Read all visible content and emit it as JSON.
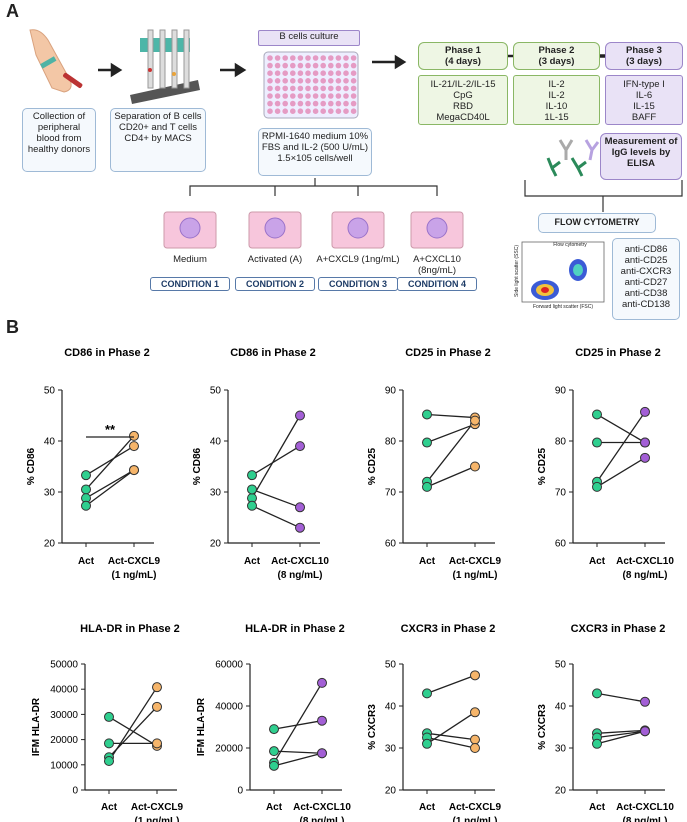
{
  "panel_a": {
    "label": "A",
    "steps": [
      "Collection of peripheral blood from healthy donors",
      "Separation of B cells CD20+ and T cells CD4+ by MACS"
    ],
    "culture": {
      "title": "B cells culture",
      "medium": "RPMI-1640 medium 10% FBS and IL-2 (500 U/mL) 1.5×105 cells/well"
    },
    "phases": [
      {
        "title": "Phase 1",
        "duration": "(4 days)",
        "items": [
          "IL-21/IL-2/IL-15",
          "CpG",
          "RBD",
          "MegaCD40L"
        ]
      },
      {
        "title": "Phase 2",
        "duration": "(3 days)",
        "items": [
          "IL-2",
          "IL-2",
          "IL-10",
          "1L-15"
        ]
      },
      {
        "title": "Phase 3",
        "duration": "(3 days)",
        "items": [
          "IFN-type I",
          "IL-6",
          "IL-15",
          "BAFF"
        ]
      }
    ],
    "measurement": "Measurement of IgG levels by ELISA",
    "conditions": [
      {
        "treatment": "Medium",
        "label": "CONDITION 1"
      },
      {
        "treatment": "Activated (A)",
        "label": "CONDITION 2"
      },
      {
        "treatment": "A+CXCL9 (1ng/mL)",
        "label": "CONDITION 3"
      },
      {
        "treatment": "A+CXCL10 (8ng/mL)",
        "label": "CONDITION 4"
      }
    ],
    "flow": {
      "title": "FLOW CYTOMETRY",
      "plot_title": "Flow cytometry",
      "x_label": "Forward light scatter (FSC)",
      "y_label": "Side light scatter (SSC)",
      "markers": [
        "anti-CD86",
        "anti-CD25",
        "anti-CXCR3",
        "anti-CD27",
        "anti-CD38",
        "anti-CD138"
      ]
    }
  },
  "panel_b_label": "B",
  "chart_data": [
    {
      "type": "paired",
      "title": "CD86 in Phase 2",
      "y_label": "% CD86",
      "categories": [
        "Act",
        "Act-CXCL9"
      ],
      "category_note": "(1 ng/mL)",
      "ylim": [
        20,
        50
      ],
      "yticks": [
        20,
        30,
        40,
        50
      ],
      "point_colors": [
        "#2fcf8f",
        "#f6b56a"
      ],
      "annotation": "**",
      "series": [
        {
          "values": [
            33.3,
            39
          ]
        },
        {
          "values": [
            30.5,
            41
          ]
        },
        {
          "values": [
            28.8,
            34.3
          ]
        },
        {
          "values": [
            27.3,
            34.3
          ]
        }
      ]
    },
    {
      "type": "paired",
      "title": "CD86 in Phase 2",
      "y_label": "% CD86",
      "categories": [
        "Act",
        "Act-CXCL10"
      ],
      "category_note": "(8 ng/mL)",
      "ylim": [
        20,
        50
      ],
      "yticks": [
        20,
        30,
        40,
        50
      ],
      "point_colors": [
        "#2fcf8f",
        "#a35fd6"
      ],
      "series": [
        {
          "values": [
            28.8,
            45
          ]
        },
        {
          "values": [
            33.3,
            39
          ]
        },
        {
          "values": [
            30.5,
            27
          ]
        },
        {
          "values": [
            27.3,
            23
          ]
        }
      ]
    },
    {
      "type": "paired",
      "title": "CD25 in Phase 2",
      "y_label": "% CD25",
      "categories": [
        "Act",
        "Act-CXCL9"
      ],
      "category_note": "(1 ng/mL)",
      "ylim": [
        60,
        90
      ],
      "yticks": [
        60,
        70,
        80,
        90
      ],
      "point_colors": [
        "#2fcf8f",
        "#f6b56a"
      ],
      "series": [
        {
          "values": [
            85.2,
            84.6
          ]
        },
        {
          "values": [
            79.7,
            83.3
          ]
        },
        {
          "values": [
            72,
            84
          ]
        },
        {
          "values": [
            71,
            75
          ]
        }
      ]
    },
    {
      "type": "paired",
      "title": "CD25 in Phase 2",
      "y_label": "% CD25",
      "categories": [
        "Act",
        "Act-CXCL10"
      ],
      "category_note": "(8 ng/mL)",
      "ylim": [
        60,
        90
      ],
      "yticks": [
        60,
        70,
        80,
        90
      ],
      "point_colors": [
        "#2fcf8f",
        "#a35fd6"
      ],
      "series": [
        {
          "values": [
            85.2,
            79.7
          ]
        },
        {
          "values": [
            79.7,
            79.7
          ]
        },
        {
          "values": [
            72,
            85.7
          ]
        },
        {
          "values": [
            71,
            76.7
          ]
        }
      ]
    },
    {
      "type": "paired",
      "title": "HLA-DR in Phase 2",
      "y_label": "IFM HLA-DR",
      "categories": [
        "Act",
        "Act-CXCL9"
      ],
      "category_note": "(1 ng/mL)",
      "ylim": [
        0,
        50000
      ],
      "yticks": [
        0,
        10000,
        20000,
        30000,
        40000,
        50000
      ],
      "point_colors": [
        "#2fcf8f",
        "#f6b56a"
      ],
      "series": [
        {
          "values": [
            29000,
            17500
          ]
        },
        {
          "values": [
            18500,
            18500
          ]
        },
        {
          "values": [
            13000,
            33000
          ]
        },
        {
          "values": [
            11500,
            40800
          ]
        }
      ]
    },
    {
      "type": "paired",
      "title": "HLA-DR in Phase 2",
      "y_label": "IFM HLA-DR",
      "categories": [
        "Act",
        "Act-CXCL10"
      ],
      "category_note": "(8 ng/mL)",
      "ylim": [
        0,
        60000
      ],
      "yticks": [
        0,
        20000,
        40000,
        60000
      ],
      "point_colors": [
        "#2fcf8f",
        "#a35fd6"
      ],
      "series": [
        {
          "values": [
            29000,
            33000
          ]
        },
        {
          "values": [
            18500,
            17500
          ]
        },
        {
          "values": [
            13000,
            51000
          ]
        },
        {
          "values": [
            11500,
            17500
          ]
        }
      ]
    },
    {
      "type": "paired",
      "title": "CXCR3 in Phase 2",
      "y_label": "% CXCR3",
      "categories": [
        "Act",
        "Act-CXCL9"
      ],
      "category_note": "(1 ng/mL)",
      "ylim": [
        20,
        50
      ],
      "yticks": [
        20,
        30,
        40,
        50
      ],
      "point_colors": [
        "#2fcf8f",
        "#f6b56a"
      ],
      "series": [
        {
          "values": [
            43,
            47.3
          ]
        },
        {
          "values": [
            33.5,
            32
          ]
        },
        {
          "values": [
            32.5,
            30
          ]
        },
        {
          "values": [
            31,
            38.5
          ]
        }
      ]
    },
    {
      "type": "paired",
      "title": "CXCR3 in Phase 2",
      "y_label": "% CXCR3",
      "categories": [
        "Act",
        "Act-CXCL10"
      ],
      "category_note": "(8 ng/mL)",
      "ylim": [
        20,
        50
      ],
      "yticks": [
        20,
        30,
        40,
        50
      ],
      "point_colors": [
        "#2fcf8f",
        "#a35fd6"
      ],
      "series": [
        {
          "values": [
            43,
            41
          ]
        },
        {
          "values": [
            33.5,
            34.2
          ]
        },
        {
          "values": [
            32.5,
            34
          ]
        },
        {
          "values": [
            31,
            34
          ]
        }
      ]
    }
  ]
}
